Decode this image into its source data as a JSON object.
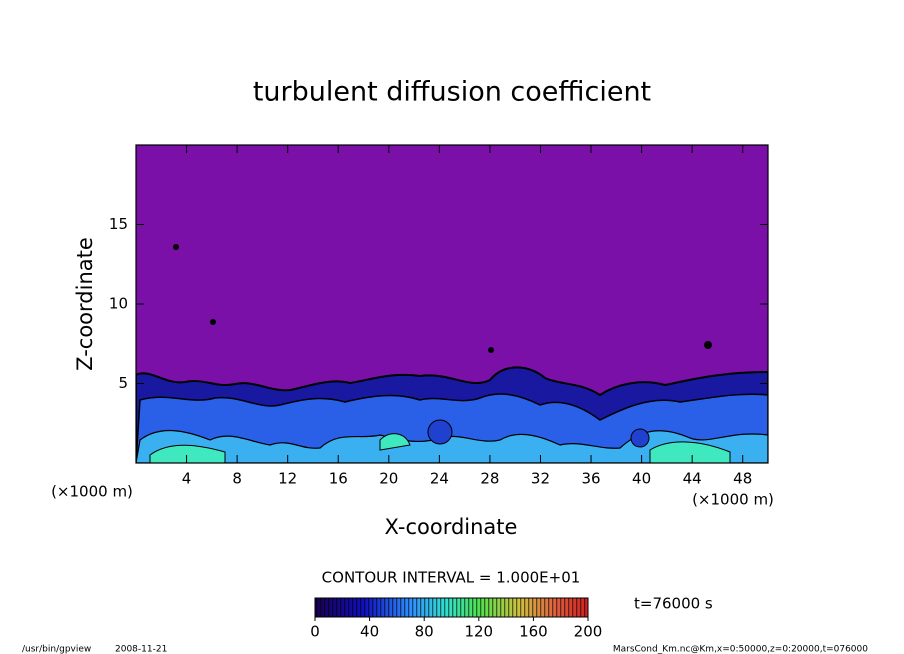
{
  "chart_data": {
    "type": "contour",
    "title": "turbulent diffusion coefficient",
    "x_label": "X-coordinate",
    "y_label": "Z-coordinate",
    "axis_unit": "(×1000 m)",
    "xlim": [
      0,
      50
    ],
    "xticks": [
      4,
      8,
      12,
      16,
      20,
      24,
      28,
      32,
      36,
      40,
      44,
      48
    ],
    "ylim": [
      0,
      20
    ],
    "yticks": [
      5,
      10,
      15
    ],
    "colorbar": {
      "lim": [
        0,
        200
      ],
      "ticks": [
        0,
        40,
        80,
        120,
        160,
        200
      ]
    },
    "contour_interval": "CONTOUR INTERVAL = 1.000E+01",
    "time_label": "t=76000 s",
    "footer_left": "/usr/bin/gpview",
    "footer_date": "2008-11-21",
    "footer_right": "MarsCond_Km.nc@Km,x=0:50000,z=0:20000,t=076000"
  }
}
